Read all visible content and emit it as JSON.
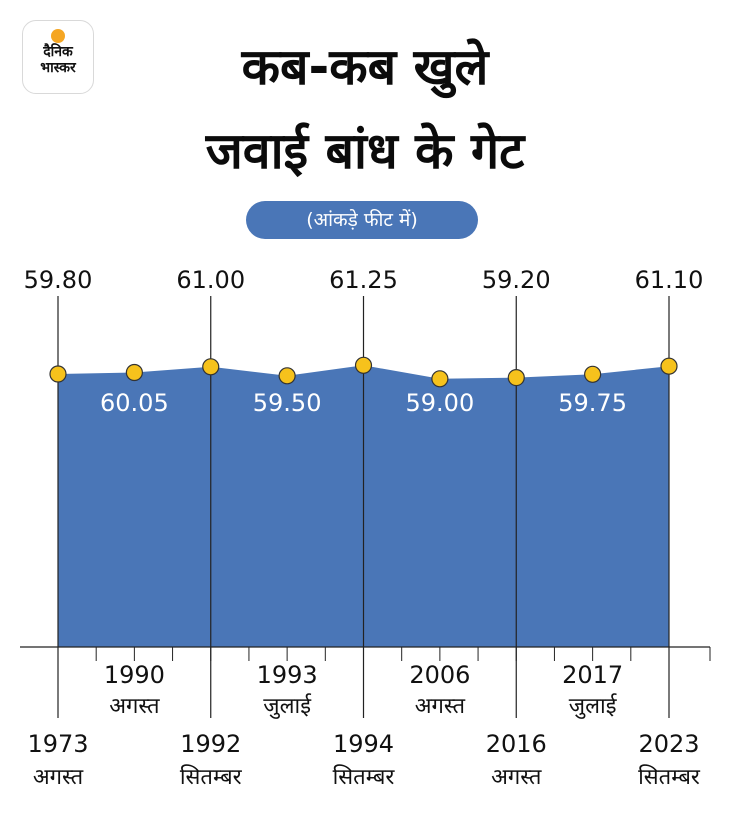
{
  "logo": {
    "line1": "दैनिक",
    "line2": "भास्कर"
  },
  "title_line1": "कब-कब खुले",
  "title_line2": "जवाई बांध के गेट",
  "subtitle": "(आंकड़े फीट में)",
  "colors": {
    "area": "#4a76b7",
    "point": "#f6c21c",
    "text": "#111111"
  },
  "chart_data": {
    "type": "area",
    "title": "कब-कब खुले जवाई बांध के गेट",
    "subtitle": "(आंकड़े फीट में)",
    "unit": "फीट",
    "points": [
      {
        "year": "1973",
        "month": "अगस्त",
        "value": 59.8,
        "label": "59.80"
      },
      {
        "year": "1990",
        "month": "अगस्त",
        "value": 60.05,
        "label": "60.05"
      },
      {
        "year": "1992",
        "month": "सितम्बर",
        "value": 61.0,
        "label": "61.00"
      },
      {
        "year": "1993",
        "month": "जुलाई",
        "value": 59.5,
        "label": "59.50"
      },
      {
        "year": "1994",
        "month": "सितम्बर",
        "value": 61.25,
        "label": "61.25"
      },
      {
        "year": "2006",
        "month": "अगस्त",
        "value": 59.0,
        "label": "59.00"
      },
      {
        "year": "2016",
        "month": "अगस्त",
        "value": 59.2,
        "label": "59.20"
      },
      {
        "year": "2017",
        "month": "जुलाई",
        "value": 59.75,
        "label": "59.75"
      },
      {
        "year": "2023",
        "month": "सितम्बर",
        "value": 61.1,
        "label": "61.10"
      }
    ],
    "grid": false,
    "legend": "none"
  }
}
